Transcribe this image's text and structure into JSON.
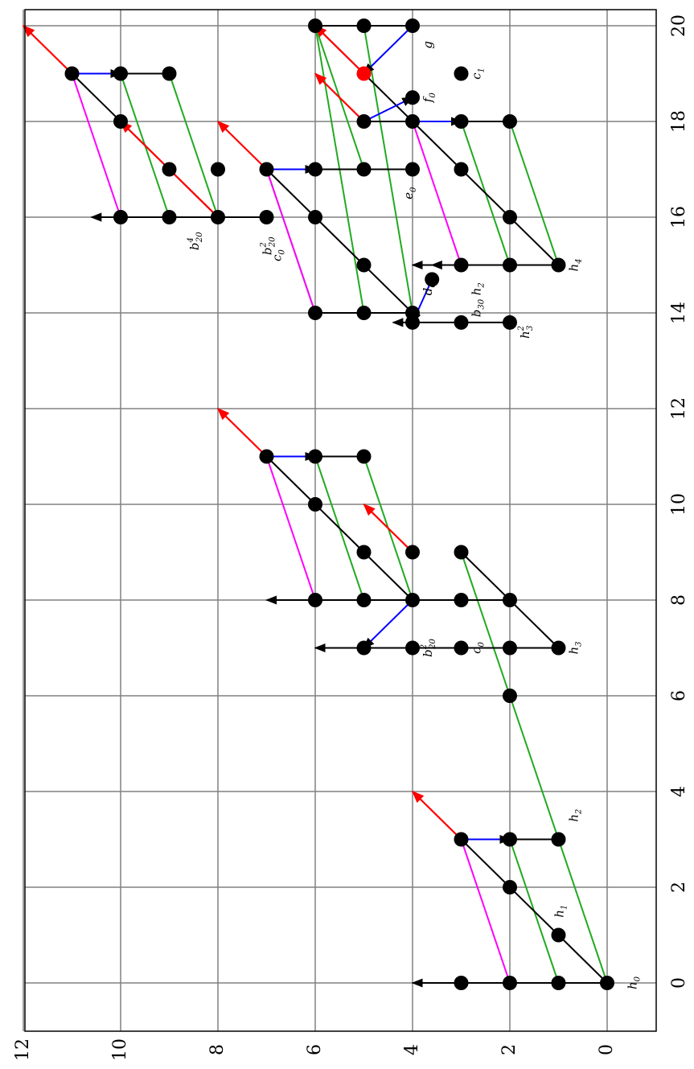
{
  "chart_data": {
    "type": "scatter",
    "orientation": "rotated-90-ccw",
    "xlim": [
      -1,
      20
    ],
    "ylim": [
      -1,
      12
    ],
    "grid": true,
    "xticks": [
      "0",
      "2",
      "4",
      "6",
      "8",
      "10",
      "12",
      "14",
      "16",
      "18",
      "20"
    ],
    "yticks": [
      "0",
      "2",
      "4",
      "6",
      "8",
      "10",
      "12"
    ],
    "colors": {
      "dot": "#000000",
      "highlight_dot": "#ff0000",
      "black_line": "#000000",
      "green_line": "#22aa22",
      "blue_line": "#0000ff",
      "magenta_line": "#ff00ff",
      "red_arrow": "#ff0000",
      "grid": "#808080"
    },
    "points": [
      [
        0,
        0
      ],
      [
        0,
        1
      ],
      [
        0,
        2
      ],
      [
        0,
        3
      ],
      [
        1,
        1
      ],
      [
        2,
        2
      ],
      [
        3,
        1
      ],
      [
        3,
        2
      ],
      [
        3,
        3
      ],
      [
        6,
        2
      ],
      [
        7,
        1
      ],
      [
        7,
        2
      ],
      [
        7,
        3
      ],
      [
        7,
        4
      ],
      [
        7,
        5
      ],
      [
        8,
        2
      ],
      [
        8,
        3
      ],
      [
        8,
        4
      ],
      [
        8,
        5
      ],
      [
        8,
        6
      ],
      [
        9,
        3
      ],
      [
        9,
        4
      ],
      [
        9,
        5
      ],
      [
        10,
        6
      ],
      [
        11,
        5
      ],
      [
        11,
        6
      ],
      [
        11,
        7
      ],
      [
        13.8,
        2
      ],
      [
        13.8,
        3
      ],
      [
        13.8,
        4
      ],
      [
        14,
        4
      ],
      [
        14,
        5
      ],
      [
        14,
        6
      ],
      [
        14.7,
        3.6
      ],
      [
        15,
        1
      ],
      [
        15,
        2
      ],
      [
        15,
        3
      ],
      [
        15,
        5
      ],
      [
        16,
        2
      ],
      [
        16,
        6
      ],
      [
        16,
        7
      ],
      [
        16,
        8
      ],
      [
        16,
        9
      ],
      [
        16,
        10
      ],
      [
        17,
        3
      ],
      [
        17,
        4
      ],
      [
        17,
        5
      ],
      [
        17,
        6
      ],
      [
        17,
        7
      ],
      [
        17,
        8
      ],
      [
        17,
        9
      ],
      [
        18,
        2
      ],
      [
        18,
        3
      ],
      [
        18,
        4
      ],
      [
        18,
        5
      ],
      [
        18,
        10
      ],
      [
        18.5,
        4
      ],
      [
        19,
        3
      ],
      [
        19,
        9
      ],
      [
        19,
        10
      ],
      [
        19,
        11
      ],
      [
        20,
        4
      ],
      [
        20,
        5
      ],
      [
        20,
        6
      ]
    ],
    "highlight_points": [
      [
        19,
        5
      ]
    ],
    "black_lines": [
      [
        [
          0,
          0
        ],
        [
          3,
          3
        ]
      ],
      [
        [
          0,
          0
        ],
        [
          0,
          3
        ]
      ],
      [
        [
          3,
          1
        ],
        [
          3,
          3
        ]
      ],
      [
        [
          7,
          1
        ],
        [
          7,
          5
        ]
      ],
      [
        [
          7,
          1
        ],
        [
          9,
          3
        ]
      ],
      [
        [
          8,
          2
        ],
        [
          8,
          6
        ]
      ],
      [
        [
          8,
          4
        ],
        [
          11,
          7
        ]
      ],
      [
        [
          11,
          5
        ],
        [
          11,
          7
        ]
      ],
      [
        [
          13.8,
          2
        ],
        [
          13.8,
          4
        ]
      ],
      [
        [
          14,
          4
        ],
        [
          14,
          6
        ]
      ],
      [
        [
          14,
          4
        ],
        [
          16,
          6
        ]
      ],
      [
        [
          16,
          6
        ],
        [
          17,
          7
        ]
      ],
      [
        [
          16,
          7
        ],
        [
          16,
          10
        ]
      ],
      [
        [
          16,
          8
        ],
        [
          19,
          11
        ]
      ],
      [
        [
          17,
          4
        ],
        [
          17,
          7
        ]
      ],
      [
        [
          15,
          1
        ],
        [
          20,
          6
        ]
      ],
      [
        [
          18,
          2
        ],
        [
          18,
          5
        ]
      ],
      [
        [
          19,
          9
        ],
        [
          19,
          11
        ]
      ],
      [
        [
          20,
          4
        ],
        [
          20,
          6
        ]
      ],
      [
        [
          15,
          1
        ],
        [
          15,
          3
        ]
      ]
    ],
    "black_arrows": [
      [
        [
          0,
          3
        ],
        [
          0,
          4
        ]
      ],
      [
        [
          7,
          5
        ],
        [
          7,
          6
        ]
      ],
      [
        [
          8,
          6
        ],
        [
          8,
          7
        ]
      ],
      [
        [
          13.8,
          4
        ],
        [
          13.8,
          4.4
        ]
      ],
      [
        [
          15,
          3
        ],
        [
          15,
          3.6
        ]
      ],
      [
        [
          15,
          3.6
        ],
        [
          15,
          4
        ]
      ],
      [
        [
          16,
          10
        ],
        [
          16,
          10.6
        ]
      ]
    ],
    "green_lines": [
      [
        [
          0,
          0
        ],
        [
          3,
          1
        ]
      ],
      [
        [
          0,
          1
        ],
        [
          3,
          2
        ]
      ],
      [
        [
          3,
          1
        ],
        [
          9,
          3
        ]
      ],
      [
        [
          8,
          4
        ],
        [
          11,
          5
        ]
      ],
      [
        [
          8,
          5
        ],
        [
          11,
          6
        ]
      ],
      [
        [
          14,
          5
        ],
        [
          20,
          6
        ]
      ],
      [
        [
          14,
          4
        ],
        [
          20,
          5
        ]
      ],
      [
        [
          15,
          2
        ],
        [
          18,
          3
        ]
      ],
      [
        [
          15,
          1
        ],
        [
          18,
          2
        ]
      ],
      [
        [
          16,
          8
        ],
        [
          19,
          9
        ]
      ],
      [
        [
          16,
          9
        ],
        [
          19,
          10
        ]
      ],
      [
        [
          17,
          5
        ],
        [
          20,
          6
        ]
      ],
      [
        [
          14,
          6
        ],
        [
          17,
          7
        ]
      ]
    ],
    "blue_lines": [
      [
        [
          3,
          3
        ],
        [
          3,
          2
        ]
      ],
      [
        [
          11,
          7
        ],
        [
          11,
          6
        ]
      ],
      [
        [
          17,
          7
        ],
        [
          17,
          6
        ]
      ],
      [
        [
          19,
          11
        ],
        [
          19,
          10
        ]
      ],
      [
        [
          18,
          4
        ],
        [
          18,
          3
        ]
      ],
      [
        [
          18,
          5
        ],
        [
          18.5,
          4
        ]
      ],
      [
        [
          8,
          4
        ],
        [
          7,
          5
        ]
      ],
      [
        [
          14.7,
          3.6
        ],
        [
          13.8,
          4
        ]
      ],
      [
        [
          20,
          4
        ],
        [
          19,
          5
        ]
      ]
    ],
    "magenta_lines": [
      [
        [
          0,
          2
        ],
        [
          3,
          3
        ]
      ],
      [
        [
          8,
          6
        ],
        [
          11,
          7
        ]
      ],
      [
        [
          14,
          6
        ],
        [
          17,
          7
        ]
      ],
      [
        [
          16,
          10
        ],
        [
          19,
          11
        ]
      ],
      [
        [
          15,
          3
        ],
        [
          18,
          4
        ]
      ]
    ],
    "red_arrows": [
      [
        [
          3,
          3
        ],
        [
          4,
          4
        ]
      ],
      [
        [
          9,
          4
        ],
        [
          10,
          5
        ]
      ],
      [
        [
          11,
          7
        ],
        [
          12,
          8
        ]
      ],
      [
        [
          16,
          8
        ],
        [
          18,
          10
        ]
      ],
      [
        [
          17,
          7
        ],
        [
          18,
          8
        ]
      ],
      [
        [
          19,
          11
        ],
        [
          20,
          12
        ]
      ],
      [
        [
          18,
          5
        ],
        [
          19,
          6
        ]
      ],
      [
        [
          19,
          5
        ],
        [
          20,
          6
        ]
      ]
    ],
    "labels": [
      {
        "base": "h",
        "sub": "0",
        "sup": "",
        "at": [
          0,
          -0.6
        ]
      },
      {
        "base": "h",
        "sub": "1",
        "sup": "",
        "at": [
          1.5,
          0.9
        ]
      },
      {
        "base": "h",
        "sub": "2",
        "sup": "",
        "at": [
          3.5,
          0.6
        ]
      },
      {
        "base": "h",
        "sub": "3",
        "sup": "",
        "at": [
          7,
          0.6
        ]
      },
      {
        "base": "b",
        "sub": "20",
        "sup": "2",
        "at": [
          7,
          3.6
        ]
      },
      {
        "base": "c",
        "sub": "0",
        "sup": "",
        "at": [
          7,
          2.6
        ]
      },
      {
        "base": "h",
        "sub": "3",
        "sup": "2",
        "at": [
          13.6,
          1.6
        ]
      },
      {
        "base": "h",
        "sub": "2",
        "sup": "",
        "at": [
          14.5,
          2.6
        ]
      },
      {
        "base": "b",
        "sub": "30",
        "sup": "",
        "at": [
          14.1,
          2.6
        ]
      },
      {
        "base": "d",
        "sub": "0",
        "sup": "",
        "at": [
          14.5,
          3.6
        ]
      },
      {
        "base": "b",
        "sub": "20",
        "sup": "2",
        "at": [
          15.4,
          6.9
        ]
      },
      {
        "base": "c",
        "sub": "0",
        "sup": "",
        "at": [
          15.2,
          6.7
        ]
      },
      {
        "base": "h",
        "sub": "4",
        "sup": "",
        "at": [
          15,
          0.6
        ]
      },
      {
        "base": "b",
        "sub": "20",
        "sup": "4",
        "at": [
          15.5,
          8.4
        ]
      },
      {
        "base": "e",
        "sub": "0",
        "sup": "",
        "at": [
          16.5,
          4
        ]
      },
      {
        "base": "f",
        "sub": "0",
        "sup": "",
        "at": [
          18.5,
          3.6
        ]
      },
      {
        "base": "c",
        "sub": "1",
        "sup": "",
        "at": [
          19,
          2.6
        ]
      },
      {
        "base": "g",
        "sub": "",
        "sup": "",
        "at": [
          19.6,
          3.6
        ]
      }
    ]
  }
}
